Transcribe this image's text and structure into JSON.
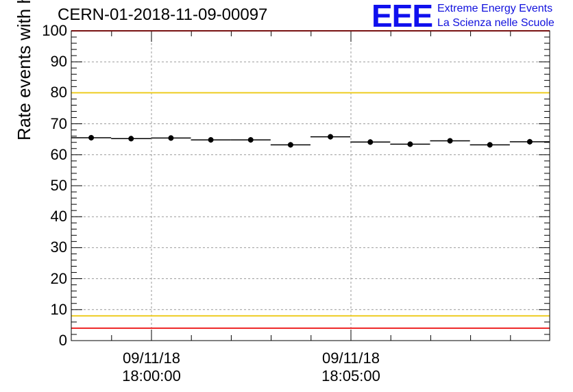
{
  "chart_data": {
    "type": "scatter",
    "title": "CERN-01-2018-11-09-00097",
    "ylabel": "Rate events with hits [Hz]",
    "xlabel": "",
    "ylim": [
      0,
      100
    ],
    "yticks": [
      "0",
      "10",
      "20",
      "30",
      "40",
      "50",
      "60",
      "70",
      "80",
      "90",
      "100"
    ],
    "xticks": [
      {
        "date": "09/11/18",
        "time": "18:00:00"
      },
      {
        "date": "09/11/18",
        "time": "18:05:00"
      }
    ],
    "grid": true,
    "reference_lines": [
      {
        "y": 100,
        "color": "#ee2222"
      },
      {
        "y": 80,
        "color": "#eecc22"
      },
      {
        "y": 8,
        "color": "#eecc22"
      },
      {
        "y": 4,
        "color": "#ee2222"
      }
    ],
    "series": [
      {
        "color": "#000000",
        "values": [
          65.5,
          65.2,
          65.4,
          64.8,
          64.8,
          63.2,
          65.8,
          64.1,
          63.4,
          64.5,
          63.2,
          64.2
        ]
      }
    ]
  },
  "logo": {
    "mark": "EEE",
    "line1": "Extreme Energy Events",
    "line2": "La Scienza nelle Scuole"
  }
}
